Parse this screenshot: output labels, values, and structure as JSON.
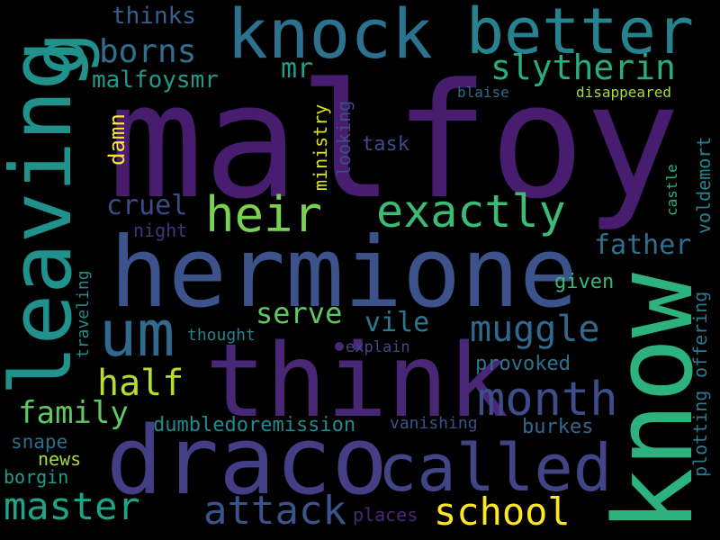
{
  "image": {
    "background_color": "#000000",
    "palette": "viridis"
  },
  "words": {
    "malfoy": "malfoy",
    "hermione": "hermione",
    "think": "think",
    "draco": "draco",
    "know": "know",
    "leaving": "leaving",
    "knock": "knock",
    "better": "better",
    "g": "g",
    "called": "called",
    "exactly": "exactly",
    "heir": "heir",
    "um": "um",
    "month": "month",
    "slytherin": "slytherin",
    "borns": "borns",
    "muggle": "muggle",
    "master": "master",
    "attack": "attack",
    "school": "school",
    "half": "half",
    "family": "family",
    "serve": "serve",
    "vile": "vile",
    "father": "father",
    "cruel": "cruel",
    "mr": "mr",
    "malfoysmr": "malfoysmr",
    "thinks": "thinks",
    "damn": "damn",
    "ministry": "ministry",
    "looking": "looking",
    "task": "task",
    "blaise": "blaise",
    "disappeared": "disappeared",
    "voldemort": "voldemort",
    "castle": "castle",
    "night": "night",
    "given": "given",
    "offering": "offering",
    "plotting": "plotting",
    "traveling": "traveling",
    "thought": "thought",
    "explain": "explain",
    "provoked": "provoked",
    "dumbledoremission": "dumbledoremission",
    "vanishing": "vanishing",
    "burkes": "burkes",
    "snape": "snape",
    "news": "news",
    "borgin": "borgin",
    "places": "places"
  }
}
